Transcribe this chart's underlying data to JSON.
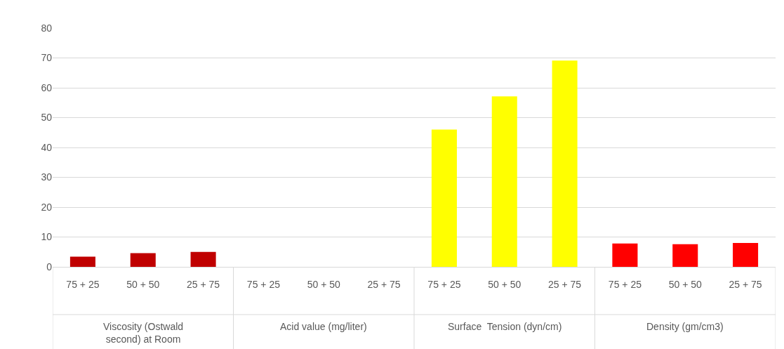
{
  "chart_data": {
    "type": "bar",
    "categories": [
      "75 + 25",
      "50 + 50",
      "25 + 75",
      "75 + 25",
      "50 + 50",
      "25 + 75",
      "75 + 25",
      "50 + 50",
      "25 + 75",
      "75 + 25",
      "50 + 50",
      "25 + 75"
    ],
    "values": [
      3.4,
      4.6,
      5.0,
      null,
      null,
      null,
      46.0,
      57.1,
      69.1,
      7.8,
      7.6,
      8.0
    ],
    "colors": [
      "#c00000",
      "#c00000",
      "#c00000",
      "#c00000",
      "#c00000",
      "#c00000",
      "#ffff00",
      "#ffff00",
      "#ffff00",
      "#ff0000",
      "#ff0000",
      "#ff0000"
    ],
    "annotations": [
      "Viscosity (Ostwald second) at Room",
      "Acid value (mg/liter)",
      "Surface  Tension (dyn/cm)",
      "Density (gm/cm3)"
    ],
    "ylim": [
      0,
      80
    ],
    "yticks": [
      0,
      10,
      20,
      30,
      40,
      50,
      60,
      70,
      80
    ],
    "grid": "y",
    "legend": false
  }
}
